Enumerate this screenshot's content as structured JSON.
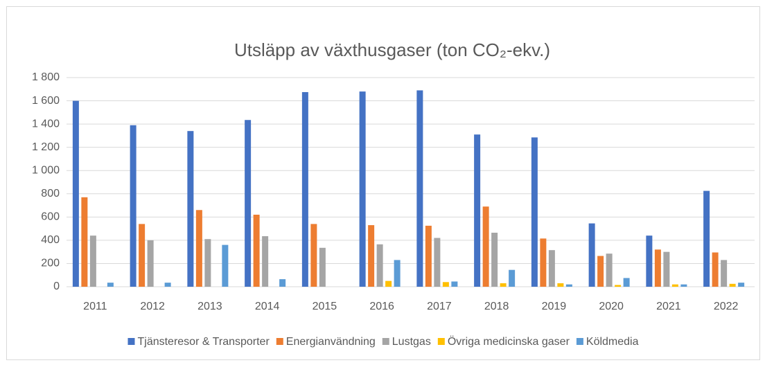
{
  "chart_data": {
    "type": "bar",
    "title": "Utsläpp av växthusgaser (ton CO₂-ekv.)",
    "categories": [
      "2011",
      "2012",
      "2013",
      "2014",
      "2015",
      "2016",
      "2017",
      "2018",
      "2019",
      "2020",
      "2021",
      "2022"
    ],
    "series": [
      {
        "name": "Tjänsteresor & Transporter",
        "color": "#4472c4",
        "values": [
          1600,
          1390,
          1340,
          1435,
          1675,
          1680,
          1690,
          1310,
          1285,
          545,
          440,
          825
        ]
      },
      {
        "name": "Energianvändning",
        "color": "#ed7d31",
        "values": [
          770,
          540,
          660,
          620,
          540,
          530,
          525,
          690,
          415,
          265,
          320,
          295
        ]
      },
      {
        "name": "Lustgas",
        "color": "#a5a5a5",
        "values": [
          440,
          400,
          410,
          435,
          335,
          365,
          420,
          465,
          315,
          285,
          300,
          230
        ]
      },
      {
        "name": "Övriga medicinska gaser",
        "color": "#ffc000",
        "values": [
          0,
          0,
          0,
          0,
          0,
          50,
          40,
          30,
          30,
          15,
          20,
          25
        ]
      },
      {
        "name": "Köldmedia",
        "color": "#5b9bd5",
        "values": [
          35,
          35,
          360,
          65,
          0,
          230,
          45,
          145,
          20,
          75,
          20,
          35
        ]
      }
    ],
    "ylim": [
      0,
      1800
    ],
    "yticks": [
      0,
      200,
      400,
      600,
      800,
      {
        "value": 1000,
        "label": "1 000"
      },
      {
        "value": 1200,
        "label": "1 200"
      },
      {
        "value": 1400,
        "label": "1 400"
      },
      {
        "value": 1600,
        "label": "1 600"
      },
      {
        "value": 1800,
        "label": "1 800"
      }
    ],
    "grid": true,
    "legend": "bottom"
  }
}
